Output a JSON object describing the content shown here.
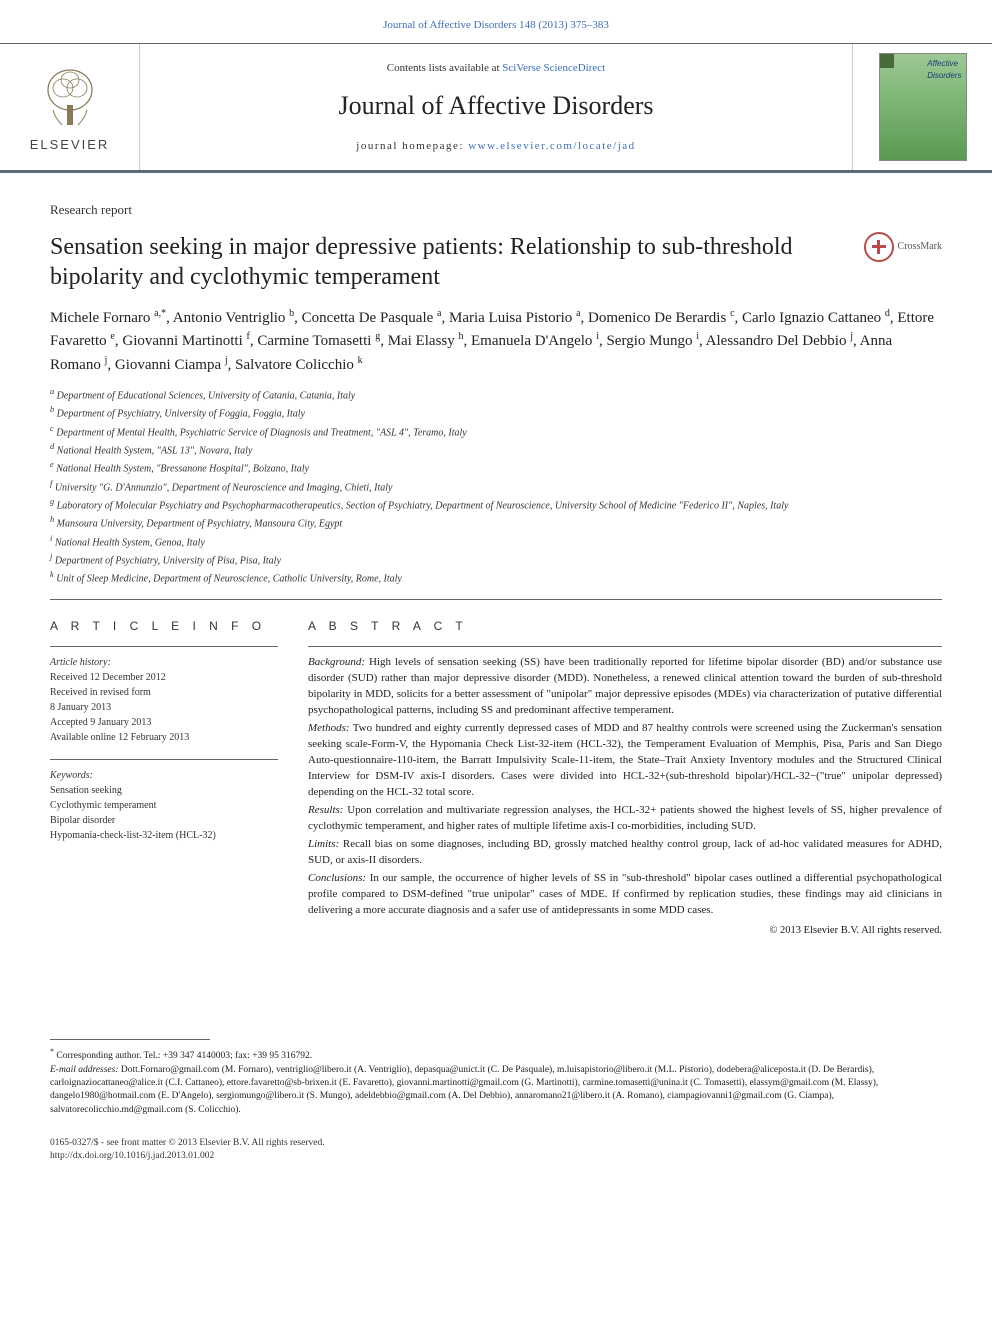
{
  "top_link": {
    "prefix": "",
    "text": "Journal of Affective Disorders 148 (2013) 375–383",
    "color": "#3c6fb8"
  },
  "header": {
    "contents_prefix": "Contents lists available at ",
    "contents_link": "SciVerse ScienceDirect",
    "journal_name": "Journal of Affective Disorders",
    "homepage_prefix": "journal homepage: ",
    "homepage_link": "www.elsevier.com/locate/jad",
    "publisher": "ELSEVIER",
    "cover_small_top": "Affective",
    "cover_small_bottom": "Disorders"
  },
  "article": {
    "type": "Research report",
    "title": "Sensation seeking in major depressive patients: Relationship to sub-threshold bipolarity and cyclothymic temperament",
    "crossmark_label": "CrossMark"
  },
  "authors_html": "Michele Fornaro <sup>a,*</sup>, Antonio Ventriglio <sup>b</sup>, Concetta De Pasquale <sup>a</sup>, Maria Luisa Pistorio <sup>a</sup>, Domenico De Berardis <sup>c</sup>, Carlo Ignazio Cattaneo <sup>d</sup>, Ettore Favaretto <sup>e</sup>, Giovanni Martinotti <sup>f</sup>, Carmine Tomasetti <sup>g</sup>, Mai Elassy <sup>h</sup>, Emanuela D'Angelo <sup>i</sup>, Sergio Mungo <sup>i</sup>, Alessandro Del Debbio <sup>j</sup>, Anna Romano <sup>j</sup>, Giovanni Ciampa <sup>j</sup>, Salvatore Colicchio <sup>k</sup>",
  "affiliations": [
    "a Department of Educational Sciences, University of Catania, Catania, Italy",
    "b Department of Psychiatry, University of Foggia, Foggia, Italy",
    "c Department of Mental Health, Psychiatric Service of Diagnosis and Treatment, \"ASL 4\", Teramo, Italy",
    "d National Health System, \"ASL 13\", Novara, Italy",
    "e National Health System, \"Bressanone Hospital\", Bolzano, Italy",
    "f University \"G. D'Annunzio\", Department of Neuroscience and Imaging, Chieti, Italy",
    "g Laboratory of Molecular Psychiatry and Psychopharmacotherapeutics, Section of Psychiatry, Department of Neuroscience, University School of Medicine \"Federico II\", Naples, Italy",
    "h Mansoura University, Department of Psychiatry, Mansoura City, Egypt",
    "i National Health System, Genoa, Italy",
    "j Department of Psychiatry, University of Pisa, Pisa, Italy",
    "k Unit of Sleep Medicine, Department of Neuroscience, Catholic University, Rome, Italy"
  ],
  "left": {
    "head": "A R T I C L E  I N F O",
    "history_label": "Article history:",
    "history": [
      "Received 12 December 2012",
      "Received in revised form",
      "8 January 2013",
      "Accepted 9 January 2013",
      "Available online 12 February 2013"
    ],
    "keywords_label": "Keywords:",
    "keywords": [
      "Sensation seeking",
      "Cyclothymic temperament",
      "Bipolar disorder",
      "Hypomania-check-list-32-item (HCL-32)"
    ]
  },
  "abstract": {
    "head": "A B S T R A C T",
    "sections": [
      {
        "label": "Background:",
        "text": "High levels of sensation seeking (SS) have been traditionally reported for lifetime bipolar disorder (BD) and/or substance use disorder (SUD) rather than major depressive disorder (MDD). Nonetheless, a renewed clinical attention toward the burden of sub-threshold bipolarity in MDD, solicits for a better assessment of \"unipolar\" major depressive episodes (MDEs) via characterization of putative differential psychopathological patterns, including SS and predominant affective temperament."
      },
      {
        "label": "Methods:",
        "text": "Two hundred and eighty currently depressed cases of MDD and 87 healthy controls were screened using the Zuckerman's sensation seeking scale-Form-V, the Hypomania Check List-32-item (HCL-32), the Temperament Evaluation of Memphis, Pisa, Paris and San Diego Auto-questionnaire-110-item, the Barratt Impulsivity Scale-11-item, the State–Trait Anxiety Inventory modules and the Structured Clinical Interview for DSM-IV axis-I disorders. Cases were divided into HCL-32+(sub-threshold bipolar)/HCL-32−(\"true\" unipolar depressed) depending on the HCL-32 total score."
      },
      {
        "label": "Results:",
        "text": "Upon correlation and multivariate regression analyses, the HCL-32+ patients showed the highest levels of SS, higher prevalence of cyclothymic temperament, and higher rates of multiple lifetime axis-I co-morbidities, including SUD."
      },
      {
        "label": "Limits:",
        "text": "Recall bias on some diagnoses, including BD, grossly matched healthy control group, lack of ad-hoc validated measures for ADHD, SUD, or axis-II disorders."
      },
      {
        "label": "Conclusions:",
        "text": "In our sample, the occurrence of higher levels of SS in \"sub-threshold\" bipolar cases outlined a differential psychopathological profile compared to DSM-defined \"true unipolar\" cases of MDE. If confirmed by replication studies, these findings may aid clinicians in delivering a more accurate diagnosis and a safer use of antidepressants in some MDD cases."
      }
    ],
    "copyright": "© 2013 Elsevier B.V. All rights reserved."
  },
  "footnotes": {
    "corr": "* Corresponding author. Tel.: +39 347 4140003; fax: +39 95 316792.",
    "email_label": "E-mail addresses:",
    "emails": "Dott.Fornaro@gmail.com (M. Fornaro), ventriglio@libero.it (A. Ventriglio), depasqua@unict.it (C. De Pasquale), m.luisapistorio@libero.it (M.L. Pistorio), dodebera@aliceposta.it (D. De Berardis), carloignaziocattaneo@alice.it (C.I. Cattaneo), ettore.favaretto@sb-brixen.it (E. Favaretto), giovanni.martinotti@gmail.com (G. Martinotti), carmine.tomasetti@unina.it (C. Tomasetti), elassym@gmail.com (M. Elassy), dangelo1980@hotmail.com (E. D'Angelo), sergiomungo@libero.it (S. Mungo), adeldebbio@gmail.com (A. Del Debbio), annaromano21@libero.it (A. Romano), ciampagiovanni1@gmail.com (G. Ciampa), salvatorecolicchio.md@gmail.com (S. Colicchio)."
  },
  "bottom": {
    "issn": "0165-0327/$ - see front matter © 2013 Elsevier B.V. All rights reserved.",
    "doi": "http://dx.doi.org/10.1016/j.jad.2013.01.002"
  },
  "colors": {
    "link": "#3c6fb8",
    "header_border": "#5a6b7a",
    "text": "#1a1a1a",
    "muted": "#333333",
    "cover_grad_top": "#9ec896",
    "cover_grad_bottom": "#5a9a52",
    "crossmark": "#b84a4a"
  },
  "typography": {
    "title_fontsize": 24,
    "journal_fontsize": 26,
    "authors_fontsize": 15,
    "affil_fontsize": 10,
    "abstract_fontsize": 11,
    "footnote_fontsize": 9.5
  }
}
